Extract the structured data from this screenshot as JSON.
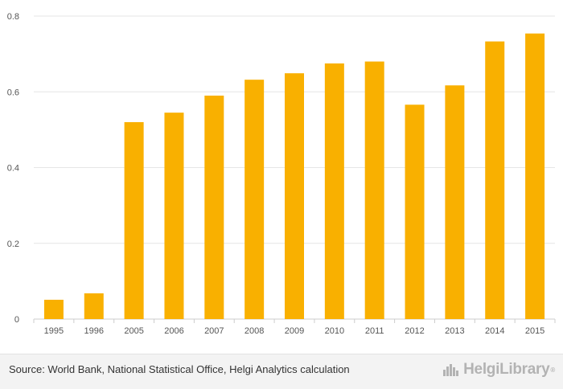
{
  "chart_data": {
    "type": "bar",
    "categories": [
      "1995",
      "1996",
      "2005",
      "2006",
      "2007",
      "2008",
      "2009",
      "2010",
      "2011",
      "2012",
      "2013",
      "2014",
      "2015"
    ],
    "values": [
      0.051,
      0.068,
      0.52,
      0.545,
      0.59,
      0.632,
      0.649,
      0.675,
      0.68,
      0.566,
      0.617,
      0.733,
      0.754
    ],
    "ylim": [
      0,
      0.8
    ],
    "yticks": [
      "0",
      "0.2",
      "0.4",
      "0.6",
      "0.8"
    ],
    "grid": true,
    "bar_color": "#f9b000",
    "title": "",
    "xlabel": "",
    "ylabel": ""
  },
  "footer": {
    "source": "Source: World Bank, National Statistical Office, Helgi Analytics calculation",
    "logo_text": "HelgiLibrary",
    "logo_reg": "®"
  }
}
